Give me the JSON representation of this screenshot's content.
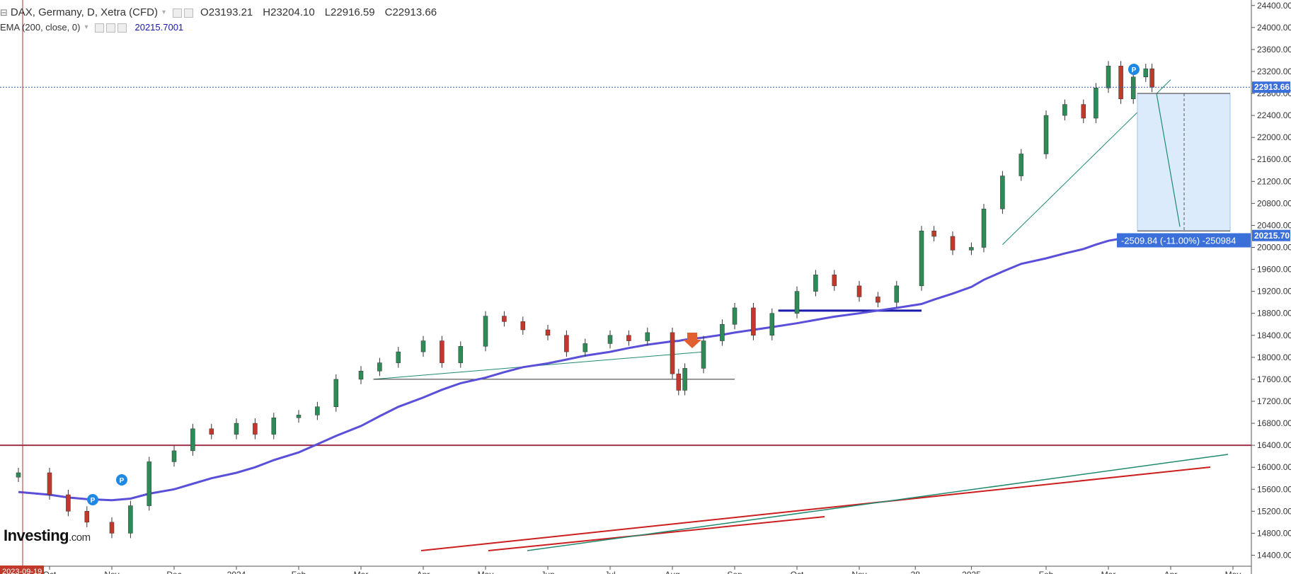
{
  "header": {
    "symbol_line": "DAX, Germany, D, Xetra (CFD)",
    "ohlc": [
      {
        "key": "O",
        "value": "23193.21"
      },
      {
        "key": "H",
        "value": "23204.10"
      },
      {
        "key": "L",
        "value": "22916.59"
      },
      {
        "key": "C",
        "value": "22913.66"
      }
    ],
    "ema_label": "EMA (200, close, 0)",
    "ema_value": "20215.7001"
  },
  "logo": {
    "main": "Investing",
    "suffix": ".com"
  },
  "price_badges": {
    "last_price": "22913.66",
    "ema_price": "20215.70",
    "measure": "-2509.84 (-11.00%) -250984"
  },
  "crosshair_date": "2023-09-19",
  "colors": {
    "bull": "#2e8b57",
    "bear": "#c0392b",
    "ema": "#5a4fd8",
    "support": "#1a1aa8",
    "horizontal_line": "#a0304a",
    "crosshair": "#b03030",
    "measure_fill": "#dcebfb",
    "badge_blue": "#3b6fd9"
  },
  "chart_data": {
    "type": "line",
    "title": "DAX, Germany, D, Xetra (CFD)",
    "ylim": [
      14200,
      24500
    ],
    "y_ticks": [
      14400,
      14800,
      15200,
      15600,
      16000,
      16400,
      16800,
      17200,
      17600,
      18000,
      18400,
      18800,
      19200,
      19600,
      20000,
      20400,
      20800,
      21200,
      21600,
      22000,
      22400,
      22800,
      23200,
      23600,
      24000,
      24400
    ],
    "x_labels": [
      "Oct",
      "Nov",
      "Dec",
      "2024",
      "Feb",
      "Mar",
      "Apr",
      "May",
      "Jun",
      "Jul",
      "Aug",
      "Sep",
      "Oct",
      "Nov",
      "28",
      "2025",
      "Feb",
      "Mar",
      "Apr",
      "May"
    ],
    "x_label_pos": [
      0.0,
      1.0,
      2.0,
      3.0,
      4.0,
      5.0,
      6.0,
      7.0,
      8.0,
      9.0,
      10.0,
      11.0,
      12.0,
      13.0,
      13.9,
      14.8,
      16.0,
      17.0,
      18.0,
      19.0
    ],
    "series": [
      {
        "name": "DAX",
        "x": [
          -0.5,
          0.0,
          0.3,
          0.6,
          1.0,
          1.3,
          1.6,
          2.0,
          2.3,
          2.6,
          3.0,
          3.3,
          3.6,
          4.0,
          4.3,
          4.6,
          5.0,
          5.3,
          5.6,
          6.0,
          6.3,
          6.6,
          7.0,
          7.3,
          7.6,
          8.0,
          8.3,
          8.6,
          9.0,
          9.3,
          9.6,
          10.0,
          10.1,
          10.2,
          10.5,
          10.8,
          11.0,
          11.3,
          11.6,
          12.0,
          12.3,
          12.6,
          13.0,
          13.3,
          13.6,
          14.0,
          14.2,
          14.5,
          14.8,
          15.0,
          15.3,
          15.6,
          16.0,
          16.3,
          16.6,
          16.8,
          17.0,
          17.2,
          17.4,
          17.6,
          17.7
        ],
        "close": [
          15900,
          15500,
          15200,
          15000,
          14800,
          15300,
          16100,
          16300,
          16700,
          16600,
          16800,
          16600,
          16900,
          16950,
          17100,
          17600,
          17750,
          17900,
          18100,
          18300,
          17900,
          18200,
          18750,
          18650,
          18500,
          18400,
          18100,
          18250,
          18400,
          18300,
          18450,
          17700,
          17400,
          17800,
          18300,
          18600,
          18900,
          18400,
          18800,
          19200,
          19500,
          19300,
          19100,
          19000,
          19300,
          20300,
          20200,
          19950,
          20000,
          20700,
          21300,
          21700,
          22400,
          22600,
          22350,
          22900,
          23300,
          22700,
          23100,
          23250,
          22913.66
        ],
        "ema200": [
          15550,
          15500,
          15450,
          15420,
          15400,
          15430,
          15520,
          15600,
          15700,
          15800,
          15900,
          16000,
          16130,
          16270,
          16420,
          16570,
          16750,
          16930,
          17100,
          17270,
          17410,
          17530,
          17630,
          17730,
          17820,
          17890,
          17960,
          18030,
          18100,
          18170,
          18230,
          18290,
          18300,
          18320,
          18360,
          18410,
          18450,
          18500,
          18550,
          18620,
          18680,
          18740,
          18800,
          18850,
          18900,
          18970,
          19050,
          19160,
          19280,
          19410,
          19560,
          19700,
          19800,
          19890,
          19970,
          20050,
          20120,
          20160,
          20190,
          20215,
          20215.7
        ]
      }
    ],
    "trendlines": [
      {
        "kind": "horizontal",
        "y": 16400
      },
      {
        "kind": "segment",
        "x": [
          5.2,
          10.5
        ],
        "y": [
          17600,
          18100
        ]
      },
      {
        "kind": "segment",
        "x": [
          5.2,
          11.0
        ],
        "y": [
          17600,
          17600
        ]
      },
      {
        "kind": "segment",
        "x": [
          11.7,
          14.0
        ],
        "y": [
          18850,
          18850
        ]
      },
      {
        "kind": "segment",
        "x": [
          15.3,
          18.0
        ],
        "y": [
          20050,
          23050
        ]
      }
    ],
    "measure": {
      "from": 22800,
      "to": 20300,
      "change": -2509.84,
      "change_pct": -11.0
    },
    "grid": false,
    "legend": "top-left"
  }
}
